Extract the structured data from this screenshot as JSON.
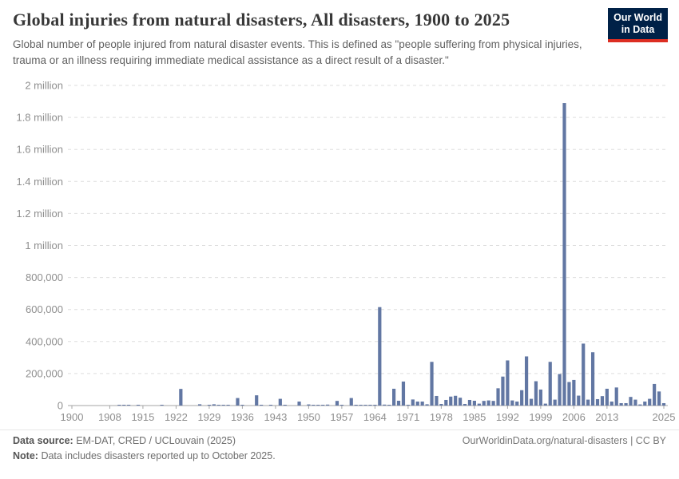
{
  "header": {
    "title": "Global injuries from natural disasters, All disasters, 1900 to 2025",
    "subtitle": "Global number of people injured from natural disaster events. This is defined as \"people suffering from physical injuries, trauma or an illness requiring immediate medical assistance as a direct result of a disaster.\"",
    "logo": {
      "line1": "Our World",
      "line2": "in Data"
    }
  },
  "chart_data": {
    "type": "bar",
    "title": "Global injuries from natural disasters, All disasters, 1900 to 2025",
    "xlabel": "",
    "ylabel": "",
    "ylim": [
      0,
      2000000
    ],
    "grid": "dashed-horizontal",
    "legend": "none",
    "bar_color": "#6277a3",
    "years": [
      1900,
      1901,
      1902,
      1903,
      1904,
      1905,
      1906,
      1907,
      1908,
      1909,
      1910,
      1911,
      1912,
      1913,
      1914,
      1915,
      1916,
      1917,
      1918,
      1919,
      1920,
      1921,
      1922,
      1923,
      1924,
      1925,
      1926,
      1927,
      1928,
      1929,
      1930,
      1931,
      1932,
      1933,
      1934,
      1935,
      1936,
      1937,
      1938,
      1939,
      1940,
      1941,
      1942,
      1943,
      1944,
      1945,
      1946,
      1947,
      1948,
      1949,
      1950,
      1951,
      1952,
      1953,
      1954,
      1955,
      1956,
      1957,
      1958,
      1959,
      1960,
      1961,
      1962,
      1963,
      1964,
      1965,
      1966,
      1967,
      1968,
      1969,
      1970,
      1971,
      1972,
      1973,
      1974,
      1975,
      1976,
      1977,
      1978,
      1979,
      1980,
      1981,
      1982,
      1983,
      1984,
      1985,
      1986,
      1987,
      1988,
      1989,
      1990,
      1991,
      1992,
      1993,
      1994,
      1995,
      1996,
      1997,
      1998,
      1999,
      2000,
      2001,
      2002,
      2003,
      2004,
      2005,
      2006,
      2007,
      2008,
      2009,
      2010,
      2011,
      2012,
      2013,
      2014,
      2015,
      2016,
      2017,
      2018,
      2019,
      2020,
      2021,
      2022,
      2023,
      2024,
      2025
    ],
    "values": [
      0,
      0,
      0,
      0,
      0,
      0,
      0,
      0,
      0,
      0,
      3000,
      2000,
      3000,
      0,
      3000,
      0,
      0,
      0,
      0,
      2000,
      0,
      0,
      0,
      104000,
      0,
      0,
      0,
      8000,
      0,
      4000,
      8000,
      3000,
      5000,
      3000,
      0,
      47000,
      2000,
      0,
      0,
      64000,
      5000,
      0,
      3000,
      0,
      42000,
      2000,
      0,
      0,
      25000,
      0,
      7000,
      2000,
      2000,
      5000,
      6000,
      0,
      29000,
      4000,
      0,
      47000,
      3000,
      3000,
      3000,
      5000,
      2000,
      615000,
      6000,
      3000,
      105000,
      30000,
      150000,
      5000,
      38000,
      25000,
      25000,
      8000,
      273000,
      60000,
      10000,
      35000,
      56000,
      61000,
      49000,
      10000,
      35000,
      30000,
      12000,
      29000,
      32000,
      29000,
      108000,
      181000,
      282000,
      32000,
      25000,
      96000,
      307000,
      42000,
      152000,
      100000,
      12000,
      273000,
      37000,
      197000,
      1890000,
      147000,
      160000,
      62000,
      387000,
      37000,
      333000,
      40000,
      59000,
      105000,
      25000,
      113000,
      15000,
      15000,
      54000,
      37000,
      7000,
      25000,
      42000,
      135000,
      88000,
      15000
    ],
    "yticks": [
      [
        0,
        "0"
      ],
      [
        200000,
        "200,000"
      ],
      [
        400000,
        "400,000"
      ],
      [
        600000,
        "600,000"
      ],
      [
        800000,
        "800,000"
      ],
      [
        1000000,
        "1 million"
      ],
      [
        1200000,
        "1.2 million"
      ],
      [
        1400000,
        "1.4 million"
      ],
      [
        1600000,
        "1.6 million"
      ],
      [
        1800000,
        "1.8 million"
      ],
      [
        2000000,
        "2 million"
      ]
    ],
    "xticks": [
      1900,
      1908,
      1915,
      1922,
      1929,
      1936,
      1943,
      1950,
      1957,
      1964,
      1971,
      1978,
      1985,
      1992,
      1999,
      2006,
      2013,
      2025
    ]
  },
  "footer": {
    "data_source_label": "Data source:",
    "data_source": "EM-DAT, CRED / UCLouvain (2025)",
    "note_label": "Note:",
    "note": "Data includes disasters reported up to October 2025.",
    "link": "OurWorldinData.org/natural-disasters | CC BY"
  },
  "colors": {
    "bar": "#6277a3",
    "logo_bg": "#002147",
    "logo_stripe": "#dc2e22",
    "gridline": "#dedede",
    "axis_line": "#a5a5a5",
    "axis_text": "#8e8e8e",
    "title_text": "#383838",
    "subtitle_text": "#616161"
  }
}
